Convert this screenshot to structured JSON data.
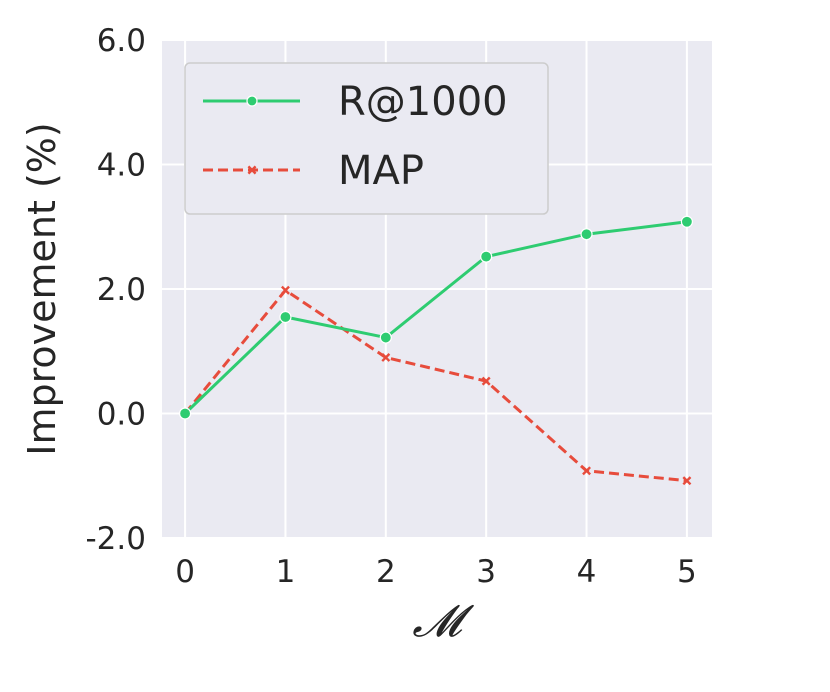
{
  "chart_data": {
    "type": "line",
    "xlabel": "𝓜",
    "ylabel": "Improvement (%)",
    "x": [
      0,
      1,
      2,
      3,
      4,
      5
    ],
    "x_tick_labels": [
      "0",
      "1",
      "2",
      "3",
      "4",
      "5"
    ],
    "ylim": [
      -2.0,
      6.0
    ],
    "y_ticks": [
      -2.0,
      0.0,
      2.0,
      4.0,
      6.0
    ],
    "y_tick_labels": [
      "-2.0",
      "0.0",
      "2.0",
      "4.0",
      "6.0"
    ],
    "grid": true,
    "legend_position": "top-left",
    "series": [
      {
        "name": "R@1000",
        "values": [
          0.0,
          1.55,
          1.22,
          2.52,
          2.88,
          3.08
        ],
        "color": "#2ecc71",
        "line_style": "solid",
        "marker": "circle"
      },
      {
        "name": "MAP",
        "values": [
          0.0,
          1.98,
          0.9,
          0.52,
          -0.92,
          -1.08
        ],
        "color": "#e74c3c",
        "line_style": "dashed",
        "marker": "x"
      }
    ]
  },
  "colors": {
    "plot_background": "#eaeaf2",
    "grid": "#ffffff",
    "legend_background": "#eaeaf2",
    "legend_border": "#cccccc"
  }
}
